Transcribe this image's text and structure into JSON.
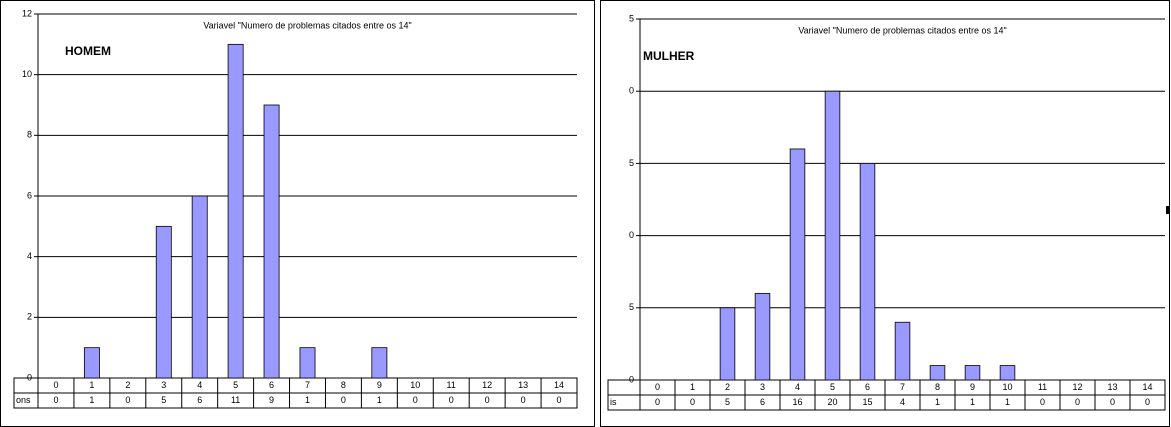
{
  "chart_data": [
    {
      "type": "bar",
      "title": "Variavel \"Numero de problemas citados entre os 14\"",
      "annotation": "HOMEM",
      "categories": [
        "0",
        "1",
        "2",
        "3",
        "4",
        "5",
        "6",
        "7",
        "8",
        "9",
        "10",
        "11",
        "12",
        "13",
        "14"
      ],
      "values": [
        0,
        1,
        0,
        5,
        6,
        11,
        9,
        1,
        0,
        1,
        0,
        0,
        0,
        0,
        0
      ],
      "table_row_label": "ons",
      "color": "#9999ff",
      "ylim": [
        0,
        12
      ],
      "yticks": [
        0,
        2,
        4,
        6,
        8,
        10,
        12
      ],
      "grid": true
    },
    {
      "type": "bar",
      "title": "Variavel \"Numero de problemas citados entre os 14\"",
      "annotation": "MULHER",
      "categories": [
        "0",
        "1",
        "2",
        "3",
        "4",
        "5",
        "6",
        "7",
        "8",
        "9",
        "10",
        "11",
        "12",
        "13",
        "14"
      ],
      "values": [
        0,
        0,
        5,
        6,
        16,
        20,
        15,
        4,
        1,
        1,
        1,
        0,
        0,
        0,
        0
      ],
      "table_row_label": "is",
      "color": "#9999ff",
      "ylim": [
        0,
        25
      ],
      "yticks": [
        0,
        {
          "value": 5,
          "label": "5"
        },
        {
          "value": 10,
          "label": "0"
        },
        {
          "value": 15,
          "label": "5"
        },
        {
          "value": 20,
          "label": "0"
        },
        {
          "value": 25,
          "label": "5"
        }
      ],
      "grid": true
    }
  ]
}
